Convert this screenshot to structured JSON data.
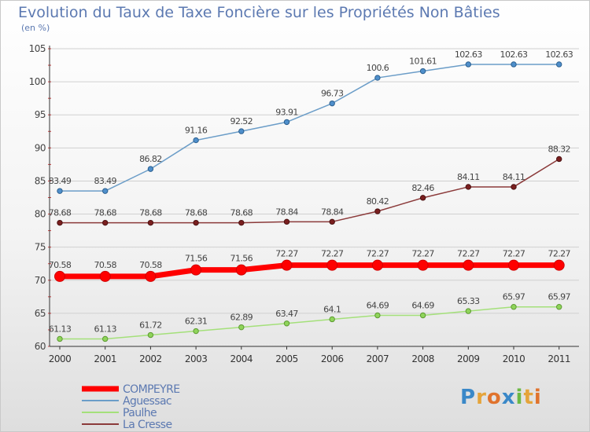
{
  "title": "Evolution du Taux de Taxe Foncière sur les Propriétés Non Bâties",
  "unit": "(en %)",
  "brand": {
    "letters": [
      "P",
      "r",
      "o",
      "x",
      "i",
      "t",
      "i"
    ]
  },
  "colors": {
    "compeyre": "#ff0000",
    "aguessac": "#6b9dc8",
    "paulhe": "#a4e07a",
    "lacresse": "#8b3a3a",
    "label": "#444444",
    "grid": "#d0d0d0"
  },
  "chart_data": {
    "type": "line",
    "title": "Evolution du Taux de Taxe Foncière sur les Propriétés Non Bâties",
    "ylabel": "(en %)",
    "ylim": [
      60,
      105
    ],
    "yticks": [
      60,
      65,
      70,
      75,
      80,
      85,
      90,
      95,
      100,
      105
    ],
    "x": [
      "2000",
      "2001",
      "2002",
      "2003",
      "2004",
      "2005",
      "2006",
      "2007",
      "2008",
      "2009",
      "2010",
      "2011"
    ],
    "legend_position": "bottom-left",
    "series": [
      {
        "name": "COMPEYRE",
        "values": [
          70.58,
          70.58,
          70.58,
          71.56,
          71.56,
          72.27,
          72.27,
          72.27,
          72.27,
          72.27,
          72.27,
          72.27
        ],
        "labels": [
          "70.58",
          "70.58",
          "70.58",
          "71.56",
          "71.56",
          "72.27",
          "72.27",
          "72.27",
          "72.27",
          "72.27",
          "72.27",
          "72.27"
        ]
      },
      {
        "name": "Aguessac",
        "values": [
          83.49,
          83.49,
          86.82,
          91.16,
          92.52,
          93.91,
          96.73,
          100.6,
          101.61,
          102.63,
          102.63,
          102.63
        ],
        "labels": [
          "83.49",
          "83.49",
          "86.82",
          "91.16",
          "92.52",
          "93.91",
          "96.73",
          "100.6",
          "101.61",
          "102.63",
          "102.63",
          "102.63"
        ]
      },
      {
        "name": "Paulhe",
        "values": [
          61.13,
          61.13,
          61.72,
          62.31,
          62.89,
          63.47,
          64.1,
          64.69,
          64.69,
          65.33,
          65.97,
          65.97
        ],
        "labels": [
          "61.13",
          "61.13",
          "61.72",
          "62.31",
          "62.89",
          "63.47",
          "64.1",
          "64.69",
          "64.69",
          "65.33",
          "65.97",
          "65.97"
        ]
      },
      {
        "name": "La Cresse",
        "values": [
          78.68,
          78.68,
          78.68,
          78.68,
          78.68,
          78.84,
          78.84,
          80.42,
          82.46,
          84.11,
          84.11,
          88.32
        ],
        "labels": [
          "78.68",
          "78.68",
          "78.68",
          "78.68",
          "78.68",
          "78.84",
          "78.84",
          "80.42",
          "82.46",
          "84.11",
          "84.11",
          "88.32"
        ]
      }
    ]
  }
}
